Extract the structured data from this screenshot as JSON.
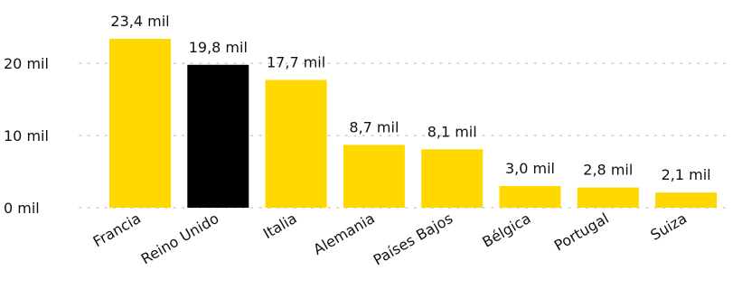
{
  "chart_data": {
    "type": "bar",
    "title": "",
    "xlabel": "",
    "ylabel": "",
    "ylim": [
      0,
      23.4
    ],
    "grid": true,
    "yticks": [
      {
        "value": 0,
        "label": "0 mil"
      },
      {
        "value": 10,
        "label": "10 mil"
      },
      {
        "value": 20,
        "label": "20 mil"
      }
    ],
    "categories": [
      "Francia",
      "Reino Unido",
      "Italia",
      "Alemania",
      "Países Bajos",
      "Bélgica",
      "Portugal",
      "Suiza"
    ],
    "values": [
      23.4,
      19.8,
      17.7,
      8.7,
      8.1,
      3.0,
      2.8,
      2.1
    ],
    "value_labels": [
      "23,4 mil",
      "19,8 mil",
      "17,7 mil",
      "8,7 mil",
      "8,1 mil",
      "3,0 mil",
      "2,8 mil",
      "2,1 mil"
    ],
    "colors": {
      "default": "#FFD800",
      "highlight": "#000000",
      "highlight_category": "Reino Unido",
      "grid": "#c8c8c8"
    }
  }
}
